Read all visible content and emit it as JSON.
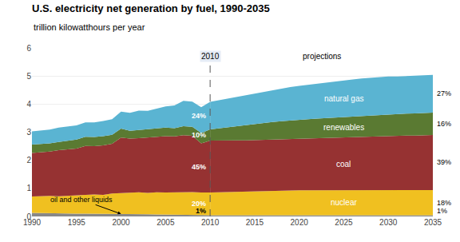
{
  "chart_data": {
    "type": "area",
    "stacked": true,
    "title": "U.S. electricity net generation by fuel, 1990-2035",
    "subtitle": "trillion kilowatthours per year",
    "xlim": [
      1990,
      2035
    ],
    "xticks": [
      1990,
      1995,
      2000,
      2005,
      2010,
      2015,
      2020,
      2025,
      2030,
      2035
    ],
    "ylim": [
      0,
      6
    ],
    "yticks": [
      0,
      1,
      2,
      3,
      4,
      5,
      6
    ],
    "grid": true,
    "vlines": [
      {
        "x": 2010,
        "label": "2010"
      }
    ],
    "annotations": [
      "projections"
    ],
    "series": [
      {
        "name": "oil and other liquids",
        "color": "#888888",
        "x": [
          1990,
          1991,
          1992,
          1993,
          1994,
          1995,
          1996,
          1997,
          1998,
          1999,
          2000,
          2001,
          2002,
          2003,
          2004,
          2005,
          2006,
          2007,
          2008,
          2009,
          2010
        ],
        "values": [
          0.13,
          0.12,
          0.11,
          0.11,
          0.1,
          0.1,
          0.1,
          0.1,
          0.1,
          0.09,
          0.09,
          0.09,
          0.08,
          0.08,
          0.07,
          0.07,
          0.07,
          0.065,
          0.06,
          0.05,
          0.04
        ],
        "end_label": {
          "value": 1,
          "label": "1%"
        }
      },
      {
        "name": "nuclear",
        "color": "#f0c020",
        "x": [
          1990,
          1991,
          1992,
          1993,
          1994,
          1995,
          1996,
          1997,
          1998,
          1999,
          2000,
          2001,
          2002,
          2003,
          2004,
          2005,
          2006,
          2007,
          2008,
          2009,
          2010
        ],
        "values": [
          0.58,
          0.61,
          0.62,
          0.61,
          0.64,
          0.67,
          0.67,
          0.68,
          0.67,
          0.73,
          0.75,
          0.77,
          0.78,
          0.76,
          0.79,
          0.78,
          0.79,
          0.81,
          0.81,
          0.8,
          0.81
        ],
        "end_label": {
          "value": 20,
          "label": "20%"
        }
      },
      {
        "name": "coal",
        "color": "#963232",
        "x": [
          1990,
          1991,
          1992,
          1993,
          1994,
          1995,
          1996,
          1997,
          1998,
          1999,
          2000,
          2001,
          2002,
          2003,
          2004,
          2005,
          2006,
          2007,
          2008,
          2009,
          2010
        ],
        "values": [
          1.55,
          1.55,
          1.58,
          1.64,
          1.65,
          1.65,
          1.74,
          1.72,
          1.76,
          1.77,
          1.97,
          1.91,
          1.93,
          1.97,
          1.98,
          2.01,
          1.99,
          2.02,
          2.0,
          1.75,
          1.85
        ],
        "end_label": {
          "value": 45,
          "label": "45%"
        }
      },
      {
        "name": "renewables",
        "color": "#5a7a32",
        "x": [
          1990,
          1991,
          1992,
          1993,
          1994,
          1995,
          1996,
          1997,
          1998,
          1999,
          2000,
          2001,
          2002,
          2003,
          2004,
          2005,
          2006,
          2007,
          2008,
          2009,
          2010
        ],
        "values": [
          0.3,
          0.3,
          0.29,
          0.29,
          0.3,
          0.32,
          0.33,
          0.33,
          0.33,
          0.32,
          0.32,
          0.28,
          0.29,
          0.29,
          0.29,
          0.3,
          0.29,
          0.32,
          0.32,
          0.37,
          0.4
        ],
        "end_label": {
          "value": 10,
          "label": "10%"
        }
      },
      {
        "name": "natural gas",
        "color": "#5ab4d2",
        "x": [
          1990,
          1991,
          1992,
          1993,
          1994,
          1995,
          1996,
          1997,
          1998,
          1999,
          2000,
          2001,
          2002,
          2003,
          2004,
          2005,
          2006,
          2007,
          2008,
          2009,
          2010
        ],
        "values": [
          0.47,
          0.48,
          0.49,
          0.51,
          0.51,
          0.5,
          0.51,
          0.52,
          0.54,
          0.55,
          0.6,
          0.64,
          0.69,
          0.66,
          0.71,
          0.76,
          0.81,
          0.9,
          0.9,
          0.92,
          0.98
        ],
        "end_label": {
          "value": 24,
          "label": "24%"
        }
      },
      {
        "name": "oil and other liquids",
        "color": "#888888",
        "x": [
          2010,
          2011,
          2012,
          2013,
          2014,
          2015,
          2016,
          2017,
          2018,
          2019,
          2020,
          2021,
          2022,
          2023,
          2024,
          2025,
          2026,
          2027,
          2028,
          2029,
          2030,
          2031,
          2032,
          2033,
          2034,
          2035
        ],
        "values": [
          0.04,
          0.04,
          0.04,
          0.04,
          0.04,
          0.04,
          0.04,
          0.04,
          0.04,
          0.04,
          0.04,
          0.04,
          0.04,
          0.04,
          0.04,
          0.04,
          0.04,
          0.04,
          0.04,
          0.04,
          0.04,
          0.04,
          0.04,
          0.04,
          0.04,
          0.04
        ],
        "end_label": {
          "value": 1,
          "label": "1%"
        }
      },
      {
        "name": "nuclear",
        "color": "#f0c020",
        "x": [
          2010,
          2011,
          2012,
          2013,
          2014,
          2015,
          2016,
          2017,
          2018,
          2019,
          2020,
          2021,
          2022,
          2023,
          2024,
          2025,
          2026,
          2027,
          2028,
          2029,
          2030,
          2031,
          2032,
          2033,
          2034,
          2035
        ],
        "values": [
          0.81,
          0.82,
          0.83,
          0.84,
          0.85,
          0.86,
          0.87,
          0.88,
          0.89,
          0.89,
          0.89,
          0.89,
          0.89,
          0.89,
          0.89,
          0.89,
          0.89,
          0.89,
          0.89,
          0.89,
          0.89,
          0.89,
          0.89,
          0.89,
          0.89,
          0.9
        ],
        "end_label": {
          "value": 18,
          "label": "18%"
        }
      },
      {
        "name": "coal",
        "color": "#963232",
        "x": [
          2010,
          2011,
          2012,
          2013,
          2014,
          2015,
          2016,
          2017,
          2018,
          2019,
          2020,
          2021,
          2022,
          2023,
          2024,
          2025,
          2026,
          2027,
          2028,
          2029,
          2030,
          2031,
          2032,
          2033,
          2034,
          2035
        ],
        "values": [
          1.85,
          1.85,
          1.84,
          1.83,
          1.82,
          1.82,
          1.82,
          1.83,
          1.83,
          1.84,
          1.84,
          1.85,
          1.86,
          1.87,
          1.88,
          1.89,
          1.9,
          1.91,
          1.92,
          1.93,
          1.94,
          1.94,
          1.95,
          1.95,
          1.96,
          1.96
        ],
        "end_label": {
          "value": 39,
          "label": "39%"
        }
      },
      {
        "name": "renewables",
        "color": "#5a7a32",
        "x": [
          2010,
          2011,
          2012,
          2013,
          2014,
          2015,
          2016,
          2017,
          2018,
          2019,
          2020,
          2021,
          2022,
          2023,
          2024,
          2025,
          2026,
          2027,
          2028,
          2029,
          2030,
          2031,
          2032,
          2033,
          2034,
          2035
        ],
        "values": [
          0.4,
          0.43,
          0.46,
          0.5,
          0.54,
          0.57,
          0.59,
          0.61,
          0.63,
          0.65,
          0.67,
          0.68,
          0.69,
          0.7,
          0.71,
          0.72,
          0.73,
          0.74,
          0.75,
          0.76,
          0.77,
          0.77,
          0.78,
          0.79,
          0.79,
          0.8
        ],
        "end_label": {
          "value": 16,
          "label": "16%"
        }
      },
      {
        "name": "natural gas",
        "color": "#5ab4d2",
        "x": [
          2010,
          2011,
          2012,
          2013,
          2014,
          2015,
          2016,
          2017,
          2018,
          2019,
          2020,
          2021,
          2022,
          2023,
          2024,
          2025,
          2026,
          2027,
          2028,
          2029,
          2030,
          2031,
          2032,
          2033,
          2034,
          2035
        ],
        "values": [
          0.98,
          1.0,
          1.03,
          1.05,
          1.07,
          1.1,
          1.13,
          1.15,
          1.17,
          1.19,
          1.21,
          1.23,
          1.26,
          1.28,
          1.3,
          1.31,
          1.32,
          1.33,
          1.34,
          1.34,
          1.34,
          1.34,
          1.34,
          1.34,
          1.34,
          1.34
        ],
        "end_label": {
          "value": 27,
          "label": "27%"
        }
      }
    ]
  }
}
